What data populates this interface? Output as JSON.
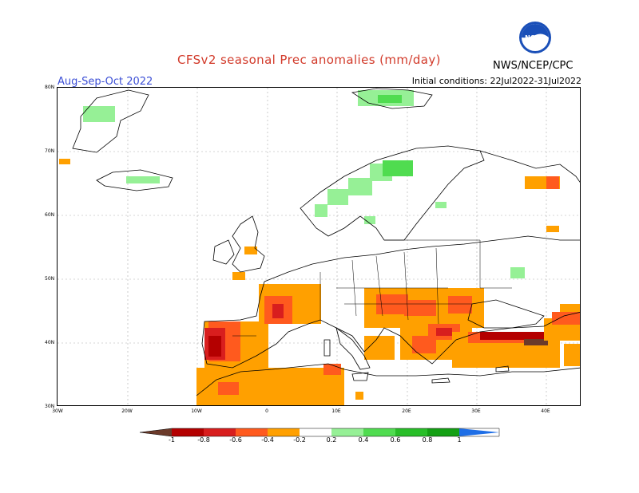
{
  "header": {
    "title": "CFSv2 seasonal Prec anomalies (mm/day)",
    "period": "Aug-Sep-Oct 2022",
    "initial_conditions": "Initial conditions: 22Jul2022-31Jul2022",
    "agency": "NWS/NCEP/CPC",
    "logo_text": "NOAA"
  },
  "map": {
    "lat_labels": [
      "80N",
      "70N",
      "60N",
      "50N",
      "40N",
      "30N"
    ],
    "lon_labels": [
      "30W",
      "20W",
      "10W",
      "0",
      "10E",
      "20E",
      "30E",
      "40E"
    ],
    "colors": {
      "neg_1": "#6b3a2a",
      "neg_08": "#b40000",
      "neg_06": "#d81e1e",
      "neg_04": "#ff5a1e",
      "neg_02": "#ffa000",
      "pos_02": "#96f096",
      "pos_04": "#50dc50",
      "pos_06": "#28be28",
      "pos_08": "#14a014",
      "pos_1": "#1e6ee6",
      "land_outline": "#000000",
      "grid": "#aaaaaa"
    }
  },
  "colorbar": {
    "labels": [
      "-1",
      "-0.8",
      "-0.6",
      "-0.4",
      "-0.2",
      "0.2",
      "0.4",
      "0.6",
      "0.8",
      "1"
    ],
    "colors": [
      "#6b3a2a",
      "#b40000",
      "#d81e1e",
      "#ff5a1e",
      "#ffa000",
      "#ffffff",
      "#96f096",
      "#50dc50",
      "#28be28",
      "#14a014",
      "#1e6ee6"
    ]
  }
}
